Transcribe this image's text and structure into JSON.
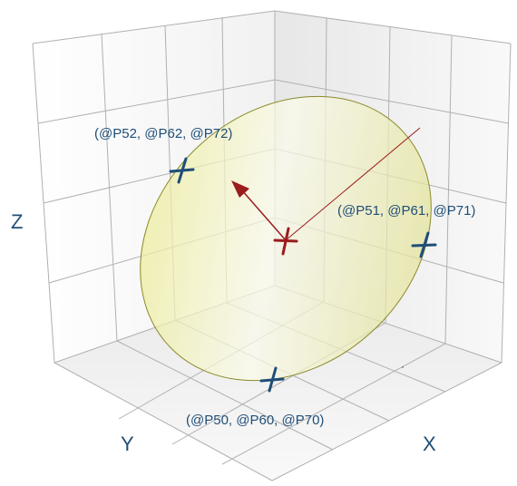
{
  "diagram": {
    "axes": {
      "x": "X",
      "y": "Y",
      "z": "Z"
    },
    "points": {
      "p1": "(@P50, @P60, @P70)",
      "p2": "(@P51, @P61, @P71)",
      "p3": "(@P52, @P62, @P72)"
    },
    "colors": {
      "point_marker": "#1f4e78",
      "center_marker": "#9b1c1c",
      "ellipse_fill": "#e6e6a0",
      "ellipse_stroke": "#8a8a2a",
      "grid": "#b0b0b0"
    }
  }
}
